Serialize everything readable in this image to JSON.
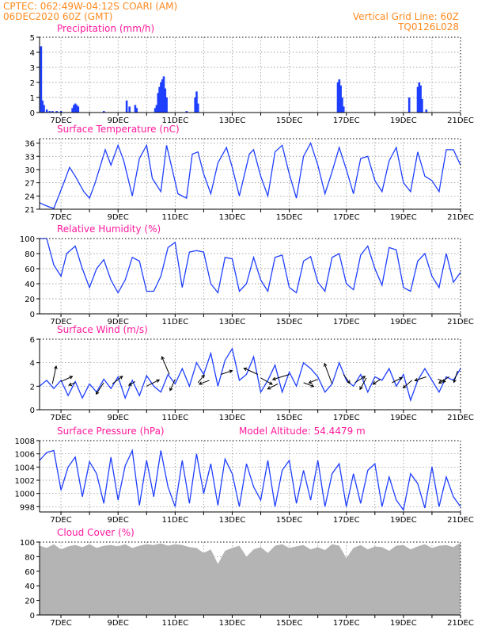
{
  "header": {
    "line1_left": "CPTEC:   062:49W-04:12S   COARI (AM)",
    "line2_left": "06DEC2020 60Z (GMT)",
    "line1_right": "Vertical Grid Line: 60Z",
    "line2_right": "TQ0126L028"
  },
  "colors": {
    "header": "#ff8a1f",
    "title": "#ff1a9c",
    "series": "#1f3fff",
    "cloud": "#b4b4b4",
    "grid": "#888888"
  },
  "x_ticks": [
    "7DEC",
    "9DEC",
    "11DEC",
    "13DEC",
    "15DEC",
    "17DEC",
    "19DEC",
    "21DEC"
  ],
  "chart_data": [
    {
      "type": "bar",
      "title": "Precipitation (mm/h)",
      "ylim": [
        0,
        5
      ],
      "yticks": [
        0,
        1,
        2,
        3,
        4,
        5
      ],
      "xlim": [
        6.25,
        21
      ],
      "series": [
        {
          "values": [
            [
              6.3,
              4.4
            ],
            [
              6.35,
              0.8
            ],
            [
              6.4,
              0.5
            ],
            [
              6.5,
              0.2
            ],
            [
              6.6,
              0.1
            ],
            [
              6.7,
              0.1
            ],
            [
              6.85,
              0.1
            ],
            [
              7.0,
              0.1
            ],
            [
              7.4,
              0.3
            ],
            [
              7.45,
              0.5
            ],
            [
              7.5,
              0.6
            ],
            [
              7.55,
              0.5
            ],
            [
              7.6,
              0.4
            ],
            [
              8.5,
              0.1
            ],
            [
              9.3,
              0.8
            ],
            [
              9.4,
              0.4
            ],
            [
              9.6,
              0.5
            ],
            [
              9.65,
              0.3
            ],
            [
              10.3,
              0.3
            ],
            [
              10.35,
              0.5
            ],
            [
              10.4,
              1.3
            ],
            [
              10.45,
              1.7
            ],
            [
              10.5,
              2.0
            ],
            [
              10.55,
              2.2
            ],
            [
              10.6,
              2.4
            ],
            [
              10.65,
              1.6
            ],
            [
              10.7,
              1.0
            ],
            [
              11.4,
              0.1
            ],
            [
              11.7,
              1.0
            ],
            [
              11.75,
              1.4
            ],
            [
              11.8,
              0.6
            ],
            [
              16.7,
              2.0
            ],
            [
              16.75,
              2.2
            ],
            [
              16.8,
              1.8
            ],
            [
              16.85,
              1.0
            ],
            [
              16.9,
              0.4
            ],
            [
              19.2,
              1.0
            ],
            [
              19.5,
              1.7
            ],
            [
              19.55,
              2.0
            ],
            [
              19.6,
              1.8
            ],
            [
              19.65,
              0.9
            ],
            [
              19.8,
              0.2
            ]
          ]
        }
      ]
    },
    {
      "type": "line",
      "title": "Surface Temperature (nC)",
      "ylim": [
        21,
        37
      ],
      "yticks": [
        21,
        24,
        27,
        30,
        33,
        36
      ],
      "xlim": [
        6.25,
        21
      ],
      "series": [
        {
          "x": [
            6.25,
            6.4,
            6.6,
            6.75,
            7.1,
            7.3,
            7.5,
            7.8,
            8.0,
            8.2,
            8.55,
            8.75,
            9.0,
            9.2,
            9.5,
            9.75,
            10.0,
            10.2,
            10.5,
            10.7,
            10.9,
            11.1,
            11.4,
            11.6,
            11.8,
            12.0,
            12.25,
            12.5,
            12.8,
            13.0,
            13.25,
            13.6,
            13.75,
            14.0,
            14.25,
            14.5,
            14.75,
            15.0,
            15.25,
            15.5,
            15.75,
            16.0,
            16.25,
            16.5,
            16.75,
            17.0,
            17.25,
            17.5,
            17.75,
            18.0,
            18.25,
            18.5,
            18.75,
            19.0,
            19.25,
            19.5,
            19.75,
            20.0,
            20.25,
            20.5,
            20.75,
            21.0
          ],
          "y": [
            22.5,
            22.0,
            21.5,
            21.2,
            27.0,
            30.5,
            28.5,
            25.0,
            23.5,
            27.0,
            34.5,
            31.0,
            35.5,
            32.0,
            24.0,
            32.5,
            35.5,
            28.0,
            25.0,
            35.5,
            30.0,
            24.5,
            23.5,
            33.5,
            34.0,
            29.0,
            24.5,
            31.5,
            35.0,
            30.5,
            24.0,
            33.5,
            34.5,
            28.5,
            24.0,
            34.0,
            35.5,
            29.0,
            23.5,
            33.0,
            36.0,
            31.0,
            24.5,
            29.5,
            35.0,
            30.0,
            24.5,
            32.5,
            33.0,
            27.5,
            25.0,
            32.0,
            35.0,
            27.0,
            25.0,
            34.0,
            28.5,
            27.5,
            25.0,
            34.5,
            34.5,
            31.0
          ]
        }
      ]
    },
    {
      "type": "line",
      "title": "Relative Humidity (%)",
      "ylim": [
        0,
        100
      ],
      "yticks": [
        0,
        20,
        40,
        60,
        80,
        100
      ],
      "xlim": [
        6.25,
        21
      ],
      "series": [
        {
          "x": [
            6.25,
            6.5,
            6.75,
            7.0,
            7.2,
            7.5,
            7.75,
            8.0,
            8.25,
            8.5,
            8.75,
            9.0,
            9.25,
            9.5,
            9.75,
            10.0,
            10.25,
            10.5,
            10.75,
            11.0,
            11.25,
            11.5,
            11.75,
            12.0,
            12.25,
            12.5,
            12.75,
            13.0,
            13.25,
            13.5,
            13.75,
            14.0,
            14.25,
            14.5,
            14.75,
            15.0,
            15.25,
            15.5,
            15.75,
            16.0,
            16.25,
            16.5,
            16.75,
            17.0,
            17.25,
            17.5,
            17.75,
            18.0,
            18.25,
            18.5,
            18.75,
            19.0,
            19.25,
            19.5,
            19.75,
            20.0,
            20.25,
            20.5,
            20.75,
            21.0
          ],
          "y": [
            100,
            100,
            65,
            50,
            80,
            90,
            60,
            35,
            60,
            72,
            45,
            28,
            45,
            75,
            70,
            30,
            30,
            50,
            88,
            95,
            35,
            82,
            84,
            82,
            40,
            28,
            75,
            73,
            30,
            40,
            75,
            45,
            30,
            75,
            78,
            35,
            28,
            70,
            76,
            42,
            30,
            75,
            80,
            40,
            32,
            78,
            90,
            60,
            38,
            88,
            85,
            35,
            30,
            70,
            80,
            50,
            35,
            80,
            42,
            55
          ]
        }
      ]
    },
    {
      "type": "line",
      "title": "Surface Wind (m/s)",
      "ylim": [
        0,
        6
      ],
      "yticks": [
        0,
        2,
        4,
        6
      ],
      "xlim": [
        6.25,
        21
      ],
      "series": [
        {
          "x": [
            6.25,
            6.5,
            6.75,
            7.0,
            7.25,
            7.5,
            7.75,
            8.0,
            8.25,
            8.5,
            8.75,
            9.0,
            9.25,
            9.5,
            9.75,
            10.0,
            10.25,
            10.5,
            10.75,
            11.0,
            11.25,
            11.5,
            11.75,
            12.0,
            12.25,
            12.5,
            12.75,
            13.0,
            13.25,
            13.5,
            13.75,
            14.0,
            14.25,
            14.5,
            14.75,
            15.0,
            15.25,
            15.5,
            15.75,
            16.0,
            16.25,
            16.5,
            16.75,
            17.0,
            17.25,
            17.5,
            17.75,
            18.0,
            18.25,
            18.5,
            18.75,
            19.0,
            19.25,
            19.5,
            19.75,
            20.0,
            20.25,
            20.5,
            20.75,
            21.0
          ],
          "y": [
            2.0,
            2.5,
            1.8,
            2.5,
            1.2,
            2.4,
            1.0,
            2.2,
            1.5,
            2.6,
            1.8,
            2.8,
            1.0,
            2.5,
            1.2,
            2.9,
            2.0,
            1.5,
            3.0,
            2.2,
            3.5,
            2.0,
            4.0,
            3.0,
            4.8,
            2.0,
            4.2,
            5.2,
            2.5,
            3.0,
            4.5,
            1.5,
            2.5,
            3.8,
            1.5,
            3.2,
            2.0,
            4.0,
            3.5,
            2.8,
            1.5,
            2.2,
            4.0,
            2.5,
            2.0,
            3.0,
            1.5,
            2.8,
            2.5,
            3.5,
            2.0,
            3.0,
            0.8,
            2.5,
            3.5,
            2.5,
            1.5,
            2.8,
            2.5,
            3.5
          ]
        }
      ],
      "vectors": [
        [
          6.7,
          2.2,
          0.3,
          1.4
        ],
        [
          7.0,
          2.4,
          0.9,
          0.4
        ],
        [
          7.5,
          2.3,
          -0.5,
          -0.2
        ],
        [
          8.5,
          2.3,
          -0.6,
          -0.9
        ],
        [
          8.8,
          2.2,
          0.8,
          0.6
        ],
        [
          9.6,
          2.4,
          -0.5,
          -0.3
        ],
        [
          10.0,
          2.0,
          1.0,
          0.5
        ],
        [
          10.8,
          3.0,
          -0.6,
          1.4
        ],
        [
          11.0,
          2.6,
          -0.4,
          -0.9
        ],
        [
          11.8,
          2.3,
          0.5,
          0.6
        ],
        [
          12.2,
          2.5,
          -0.8,
          -0.3
        ],
        [
          12.6,
          3.0,
          0.9,
          0.3
        ],
        [
          13.9,
          3.0,
          -1.1,
          0.5
        ],
        [
          14.0,
          2.7,
          0.9,
          -0.5
        ],
        [
          14.6,
          2.2,
          -0.8,
          -0.4
        ],
        [
          15.0,
          3.0,
          -1.3,
          -0.4
        ],
        [
          15.5,
          2.3,
          0.8,
          -0.3
        ],
        [
          16.0,
          2.6,
          -0.7,
          -0.3
        ],
        [
          16.5,
          2.2,
          -0.6,
          1.6
        ],
        [
          16.9,
          3.0,
          0.5,
          -0.7
        ],
        [
          17.3,
          2.3,
          0.8,
          0.5
        ],
        [
          17.7,
          2.7,
          -0.5,
          -0.9
        ],
        [
          18.2,
          2.6,
          -0.6,
          -0.4
        ],
        [
          18.6,
          2.3,
          0.8,
          0.4
        ],
        [
          19.3,
          2.5,
          -0.7,
          -0.6
        ],
        [
          19.8,
          2.8,
          -0.9,
          -0.3
        ],
        [
          20.2,
          2.6,
          0.6,
          -0.2
        ],
        [
          20.6,
          2.8,
          -0.8,
          -0.5
        ],
        [
          20.9,
          3.3,
          -0.3,
          -0.9
        ]
      ]
    },
    {
      "type": "line",
      "title": "Surface Pressure (hPa)",
      "annotation": "Model Altitude: 54.4479 m",
      "ylim": [
        997.2,
        1008
      ],
      "yticks": [
        998,
        1000,
        1002,
        1004,
        1006,
        1008
      ],
      "xlim": [
        6.25,
        21
      ],
      "series": [
        {
          "x": [
            6.25,
            6.5,
            6.75,
            7.0,
            7.25,
            7.5,
            7.75,
            8.0,
            8.25,
            8.5,
            8.75,
            9.0,
            9.25,
            9.5,
            9.75,
            10.0,
            10.25,
            10.5,
            10.75,
            11.0,
            11.25,
            11.5,
            11.75,
            12.0,
            12.25,
            12.5,
            12.75,
            13.0,
            13.25,
            13.5,
            13.75,
            14.0,
            14.25,
            14.5,
            14.75,
            15.0,
            15.25,
            15.5,
            15.75,
            16.0,
            16.25,
            16.5,
            16.75,
            17.0,
            17.25,
            17.5,
            17.75,
            18.0,
            18.25,
            18.5,
            18.75,
            19.0,
            19.25,
            19.5,
            19.75,
            20.0,
            20.25,
            20.5,
            20.75,
            21.0
          ],
          "y": [
            1005.0,
            1006.2,
            1006.5,
            1000.5,
            1004.0,
            1005.5,
            999.5,
            1004.8,
            1003.0,
            998.5,
            1005.5,
            999.0,
            1004.2,
            1006.5,
            998.2,
            1005.0,
            999.5,
            1006.5,
            1001.0,
            998.0,
            1005.0,
            998.5,
            1006.0,
            1000.0,
            1004.5,
            998.2,
            1005.2,
            1003.0,
            998.0,
            1004.5,
            1001.0,
            999.0,
            1005.0,
            998.0,
            1003.5,
            1005.0,
            998.5,
            1003.5,
            999.0,
            1005.0,
            998.0,
            1003.0,
            1004.5,
            998.0,
            1003.0,
            998.5,
            1003.5,
            1004.5,
            998.0,
            1002.5,
            999.0,
            997.5,
            1003.0,
            1001.5,
            997.8,
            1004.0,
            998.0,
            1002.5,
            999.5,
            998.0
          ]
        }
      ]
    },
    {
      "type": "area",
      "title": "Cloud Cover (%)",
      "ylim": [
        0,
        100
      ],
      "yticks": [
        0,
        20,
        40,
        60,
        80,
        100
      ],
      "xlim": [
        6.25,
        21
      ],
      "series": [
        {
          "x": [
            6.25,
            6.5,
            6.75,
            7.0,
            7.25,
            7.5,
            7.75,
            8.0,
            8.25,
            8.5,
            8.75,
            9.0,
            9.25,
            9.5,
            9.75,
            10.0,
            10.25,
            10.5,
            10.75,
            11.0,
            11.25,
            11.5,
            11.75,
            12.0,
            12.25,
            12.5,
            12.75,
            13.0,
            13.25,
            13.5,
            13.75,
            14.0,
            14.25,
            14.5,
            14.75,
            15.0,
            15.25,
            15.5,
            15.75,
            16.0,
            16.25,
            16.5,
            16.75,
            17.0,
            17.25,
            17.5,
            17.75,
            18.0,
            18.25,
            18.5,
            18.75,
            19.0,
            19.25,
            19.5,
            19.75,
            20.0,
            20.25,
            20.5,
            20.75,
            21.0
          ],
          "y": [
            95,
            92,
            97,
            90,
            94,
            96,
            93,
            97,
            92,
            95,
            96,
            94,
            97,
            92,
            95,
            97,
            96,
            98,
            95,
            97,
            96,
            93,
            92,
            85,
            90,
            70,
            88,
            92,
            95,
            80,
            90,
            93,
            85,
            95,
            97,
            92,
            94,
            96,
            90,
            93,
            89,
            97,
            95,
            78,
            92,
            96,
            90,
            94,
            93,
            88,
            95,
            96,
            90,
            94,
            97,
            92,
            95,
            96,
            93,
            99
          ]
        }
      ]
    }
  ]
}
